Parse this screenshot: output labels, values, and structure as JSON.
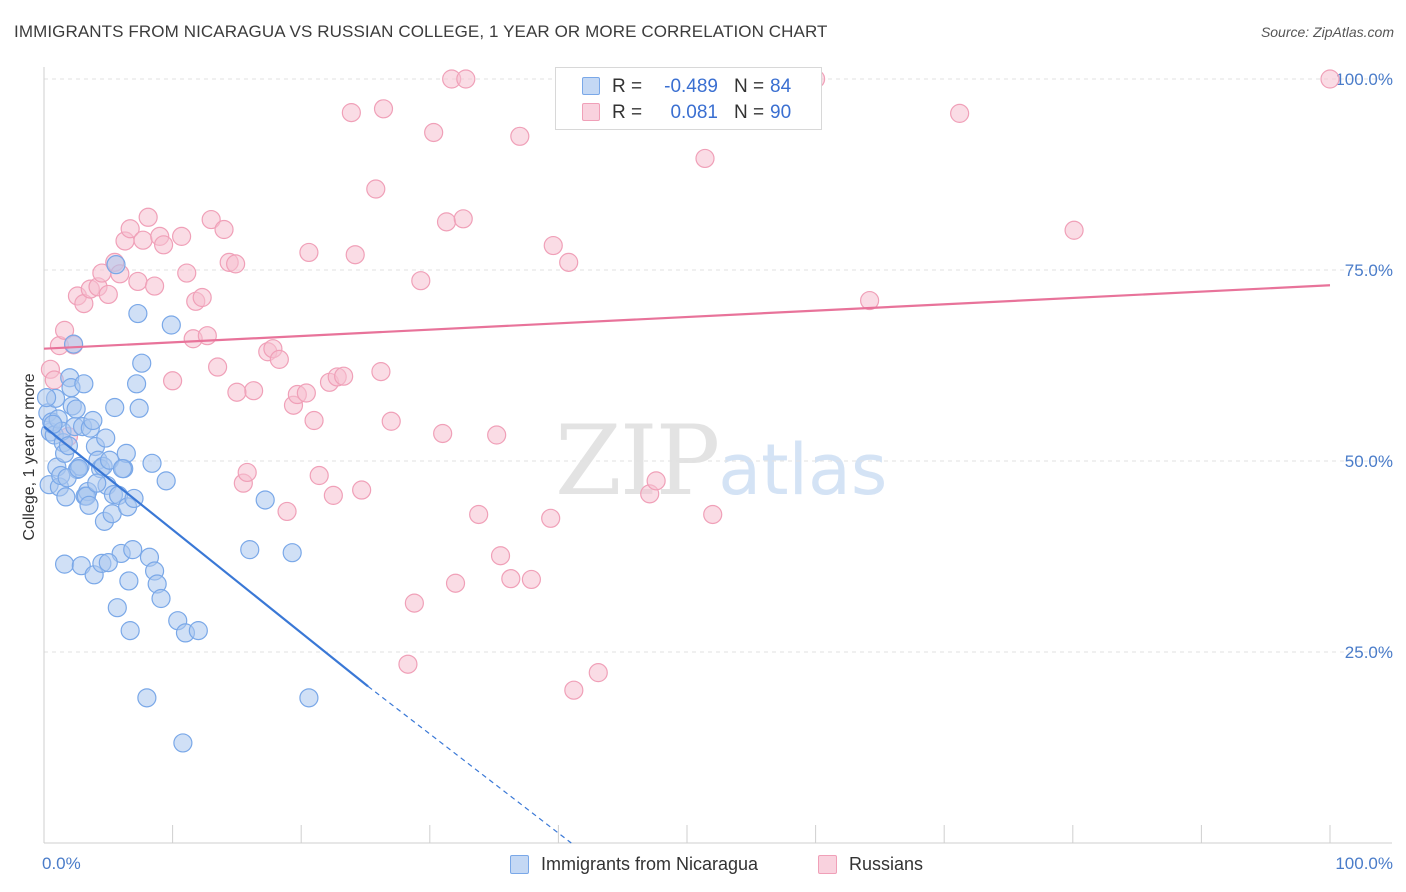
{
  "header": {
    "title": "IMMIGRANTS FROM NICARAGUA VS RUSSIAN COLLEGE, 1 YEAR OR MORE CORRELATION CHART",
    "source": "Source: ZipAtlas.com"
  },
  "watermark": {
    "zip": "ZIP",
    "atlas": "atlas"
  },
  "legend": {
    "rows": [
      {
        "r_label": "R =",
        "r_value": "-0.489",
        "n_label": "N =",
        "n_value": "84",
        "color": "#7aa8e8"
      },
      {
        "r_label": "R =",
        "r_value": "0.081",
        "n_label": "N =",
        "n_value": "90",
        "color": "#f0a0b8"
      }
    ]
  },
  "bottom_legend": {
    "items": [
      {
        "label": "Immigrants from Nicaragua",
        "color": "#7aa8e8"
      },
      {
        "label": "Russians",
        "color": "#f0a0b8"
      }
    ]
  },
  "chart_data": {
    "type": "scatter",
    "title": "IMMIGRANTS FROM NICARAGUA VS RUSSIAN COLLEGE, 1 YEAR OR MORE CORRELATION CHART",
    "ylabel": "College, 1 year or more",
    "xlabel": "",
    "xlim": [
      0,
      100
    ],
    "ylim": [
      0,
      100
    ],
    "x_tick_labels": [
      "0.0%",
      "100.0%"
    ],
    "y_tick_labels": [
      {
        "value": 25,
        "label": "25.0%"
      },
      {
        "value": 50,
        "label": "50.0%"
      },
      {
        "value": 75,
        "label": "75.0%"
      },
      {
        "value": 100,
        "label": "100.0%"
      }
    ],
    "grid": true,
    "colors": {
      "blue": "#3a78d6",
      "pink": "#e8739a",
      "blue_fill": "#a9c7ef",
      "pink_fill": "#f6bfd0"
    },
    "series": [
      {
        "name": "Immigrants from Nicaragua",
        "trend": {
          "x0": 0,
          "y0": 54.5,
          "x1": 25.2,
          "y1": 20.5,
          "dash_to_x": 41,
          "dash_to_y": 0
        },
        "points": [
          [
            0.3,
            56.3
          ],
          [
            0.5,
            53.8
          ],
          [
            0.6,
            55.1
          ],
          [
            0.4,
            46.9
          ],
          [
            0.9,
            58.2
          ],
          [
            0.8,
            53.4
          ],
          [
            1.0,
            49.2
          ],
          [
            1.2,
            46.6
          ],
          [
            1.3,
            48.1
          ],
          [
            1.1,
            55.5
          ],
          [
            1.5,
            52.4
          ],
          [
            1.6,
            51.0
          ],
          [
            1.7,
            45.3
          ],
          [
            1.4,
            53.9
          ],
          [
            2.0,
            60.9
          ],
          [
            2.2,
            57.2
          ],
          [
            2.4,
            54.5
          ],
          [
            2.1,
            59.6
          ],
          [
            2.5,
            56.8
          ],
          [
            2.3,
            65.3
          ],
          [
            2.6,
            48.9
          ],
          [
            2.8,
            49.3
          ],
          [
            3.0,
            54.5
          ],
          [
            3.2,
            45.4
          ],
          [
            3.4,
            46.0
          ],
          [
            3.6,
            54.3
          ],
          [
            3.8,
            55.3
          ],
          [
            4.0,
            51.9
          ],
          [
            4.2,
            50.1
          ],
          [
            4.4,
            49.0
          ],
          [
            4.6,
            49.3
          ],
          [
            4.7,
            42.1
          ],
          [
            4.9,
            46.8
          ],
          [
            5.1,
            50.1
          ],
          [
            5.3,
            43.1
          ],
          [
            5.4,
            45.6
          ],
          [
            5.5,
            57.0
          ],
          [
            5.8,
            45.5
          ],
          [
            6.0,
            37.9
          ],
          [
            6.2,
            49.0
          ],
          [
            6.4,
            51.0
          ],
          [
            6.5,
            44.0
          ],
          [
            6.6,
            34.3
          ],
          [
            6.9,
            38.4
          ],
          [
            7.0,
            45.1
          ],
          [
            7.3,
            69.3
          ],
          [
            7.4,
            56.9
          ],
          [
            7.6,
            62.8
          ],
          [
            8.2,
            37.4
          ],
          [
            8.4,
            49.7
          ],
          [
            8.6,
            35.6
          ],
          [
            8.8,
            33.9
          ],
          [
            9.1,
            32.0
          ],
          [
            9.5,
            47.4
          ],
          [
            9.9,
            67.8
          ],
          [
            10.4,
            29.1
          ],
          [
            11.0,
            27.5
          ],
          [
            12.0,
            27.8
          ],
          [
            1.6,
            36.5
          ],
          [
            2.9,
            36.3
          ],
          [
            3.9,
            35.1
          ],
          [
            4.5,
            36.6
          ],
          [
            5.0,
            36.7
          ],
          [
            5.7,
            30.8
          ],
          [
            6.7,
            27.8
          ],
          [
            8.0,
            19.0
          ],
          [
            10.8,
            13.1
          ],
          [
            16.0,
            38.4
          ],
          [
            17.2,
            44.9
          ],
          [
            19.3,
            38.0
          ],
          [
            20.6,
            19.0
          ],
          [
            7.2,
            60.1
          ],
          [
            5.6,
            75.7
          ],
          [
            3.1,
            60.1
          ],
          [
            1.8,
            47.8
          ],
          [
            0.7,
            54.8
          ],
          [
            0.2,
            58.3
          ],
          [
            2.7,
            49.0
          ],
          [
            3.3,
            45.4
          ],
          [
            4.1,
            47.1
          ],
          [
            1.9,
            52.0
          ],
          [
            6.1,
            49.0
          ],
          [
            4.8,
            53.0
          ],
          [
            3.5,
            44.2
          ]
        ]
      },
      {
        "name": "Russians",
        "trend": {
          "x0": 0,
          "y0": 64.7,
          "x1": 100,
          "y1": 73.0
        },
        "points": [
          [
            0.5,
            62.0
          ],
          [
            1.2,
            65.1
          ],
          [
            1.6,
            67.1
          ],
          [
            2.3,
            65.2
          ],
          [
            2.6,
            71.6
          ],
          [
            3.1,
            70.6
          ],
          [
            3.6,
            72.5
          ],
          [
            4.2,
            72.8
          ],
          [
            4.5,
            74.6
          ],
          [
            5.0,
            71.8
          ],
          [
            5.5,
            76.0
          ],
          [
            5.9,
            74.5
          ],
          [
            6.3,
            78.8
          ],
          [
            6.7,
            80.4
          ],
          [
            7.3,
            73.5
          ],
          [
            7.7,
            78.9
          ],
          [
            8.1,
            81.9
          ],
          [
            8.6,
            72.9
          ],
          [
            9.0,
            79.4
          ],
          [
            9.3,
            78.3
          ],
          [
            10.0,
            60.5
          ],
          [
            10.7,
            79.4
          ],
          [
            11.1,
            74.6
          ],
          [
            11.6,
            66.0
          ],
          [
            11.8,
            70.9
          ],
          [
            12.3,
            71.4
          ],
          [
            12.7,
            66.4
          ],
          [
            13.0,
            81.6
          ],
          [
            13.5,
            62.3
          ],
          [
            14.0,
            80.3
          ],
          [
            14.4,
            76.0
          ],
          [
            14.9,
            75.8
          ],
          [
            15.5,
            47.1
          ],
          [
            15.8,
            48.5
          ],
          [
            16.3,
            59.2
          ],
          [
            17.4,
            64.3
          ],
          [
            17.8,
            64.7
          ],
          [
            18.3,
            63.3
          ],
          [
            18.9,
            43.4
          ],
          [
            19.4,
            57.3
          ],
          [
            19.7,
            58.7
          ],
          [
            20.4,
            58.9
          ],
          [
            20.6,
            77.3
          ],
          [
            21.0,
            55.3
          ],
          [
            21.4,
            48.1
          ],
          [
            22.2,
            60.3
          ],
          [
            22.8,
            61.0
          ],
          [
            22.5,
            45.5
          ],
          [
            23.3,
            61.1
          ],
          [
            23.9,
            95.6
          ],
          [
            24.7,
            46.2
          ],
          [
            25.8,
            85.6
          ],
          [
            26.2,
            61.7
          ],
          [
            26.4,
            96.1
          ],
          [
            27.0,
            55.2
          ],
          [
            28.3,
            23.4
          ],
          [
            28.8,
            31.4
          ],
          [
            29.3,
            73.6
          ],
          [
            30.3,
            93.0
          ],
          [
            31.0,
            53.6
          ],
          [
            31.3,
            81.3
          ],
          [
            31.7,
            100.0
          ],
          [
            32.0,
            34.0
          ],
          [
            32.6,
            81.7
          ],
          [
            32.8,
            100.0
          ],
          [
            33.8,
            43.0
          ],
          [
            35.2,
            53.4
          ],
          [
            35.5,
            37.6
          ],
          [
            36.3,
            34.6
          ],
          [
            37.0,
            92.5
          ],
          [
            37.9,
            34.5
          ],
          [
            39.4,
            42.5
          ],
          [
            39.6,
            78.2
          ],
          [
            40.8,
            76.0
          ],
          [
            41.2,
            20.0
          ],
          [
            43.1,
            22.3
          ],
          [
            47.1,
            45.7
          ],
          [
            47.6,
            47.4
          ],
          [
            51.4,
            89.6
          ],
          [
            52.0,
            43.0
          ],
          [
            58.0,
            100.0
          ],
          [
            60.0,
            100.0
          ],
          [
            64.2,
            71.0
          ],
          [
            71.2,
            95.5
          ],
          [
            80.1,
            80.2
          ],
          [
            100.0,
            100.0
          ],
          [
            0.8,
            60.6
          ],
          [
            1.9,
            53.2
          ],
          [
            15.0,
            59.0
          ],
          [
            24.2,
            77.0
          ]
        ]
      }
    ]
  }
}
